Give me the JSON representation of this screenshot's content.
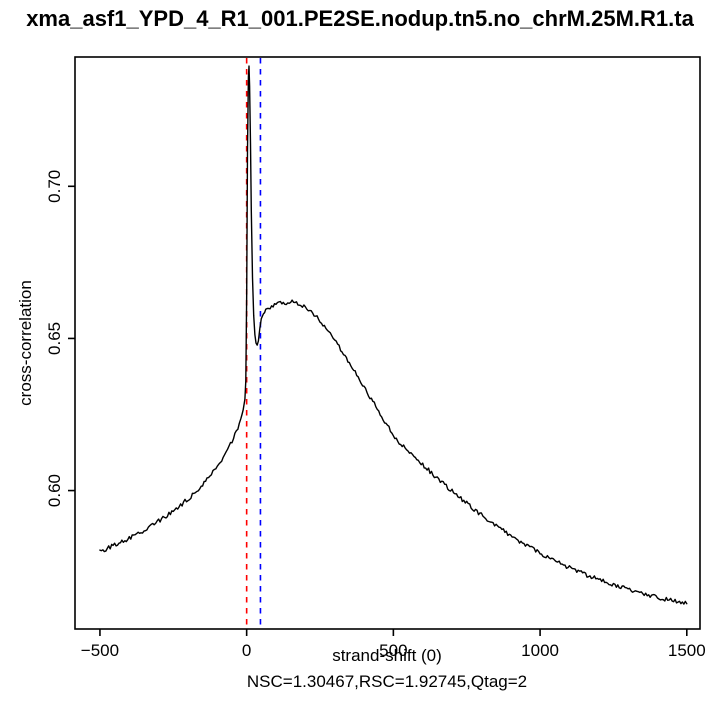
{
  "title": "xma_asf1_YPD_4_R1_001.PE2SE.nodup.tn5.no_chrM.25M.R1.ta",
  "chart_data": {
    "type": "line",
    "title": "xma_asf1_YPD_4_R1_001.PE2SE.nodup.tn5.no_chrM.25M.R1.ta",
    "xlabel": "strand-shift (0)",
    "ylabel": "cross-correlation",
    "subtitle": "NSC=1.30467,RSC=1.92745,Qtag=2",
    "xlim": [
      -585,
      1545
    ],
    "ylim": [
      0.5545,
      0.7425
    ],
    "grid": false,
    "x_ticks": [
      {
        "v": -500,
        "label": "−500"
      },
      {
        "v": 0,
        "label": "0"
      },
      {
        "v": 500,
        "label": "500"
      },
      {
        "v": 1000,
        "label": "1000"
      },
      {
        "v": 1500,
        "label": "1500"
      }
    ],
    "y_ticks": [
      {
        "v": 0.6,
        "label": "0.60"
      },
      {
        "v": 0.65,
        "label": "0.65"
      },
      {
        "v": 0.7,
        "label": "0.70"
      }
    ],
    "vlines": [
      {
        "x": 0,
        "color": "#FF0000",
        "style": "dashed",
        "name": "red-dashed-vline"
      },
      {
        "x": 47,
        "color": "#0000FF",
        "style": "dashed",
        "name": "blue-dashed-vline"
      }
    ],
    "series": [
      {
        "name": "cross-correlation",
        "color": "#000000",
        "x": [
          -500,
          -470,
          -440,
          -410,
          -380,
          -350,
          -320,
          -290,
          -260,
          -230,
          -200,
          -180,
          -160,
          -140,
          -120,
          -100,
          -85,
          -70,
          -55,
          -40,
          -30,
          -20,
          -12,
          -6,
          -3,
          0,
          3,
          6,
          8,
          10,
          13,
          16,
          20,
          24,
          28,
          32,
          36,
          40,
          45,
          50,
          57,
          65,
          75,
          90,
          110,
          130,
          150,
          170,
          190,
          210,
          240,
          270,
          300,
          330,
          360,
          390,
          420,
          450,
          480,
          510,
          540,
          570,
          600,
          650,
          700,
          750,
          800,
          850,
          900,
          950,
          1000,
          1050,
          1100,
          1150,
          1200,
          1250,
          1300,
          1350,
          1400,
          1450,
          1500
        ],
        "y": [
          0.58,
          0.5812,
          0.5825,
          0.5839,
          0.5854,
          0.587,
          0.5887,
          0.5906,
          0.5926,
          0.5948,
          0.5972,
          0.599,
          0.6009,
          0.603,
          0.6053,
          0.6079,
          0.61,
          0.6124,
          0.6151,
          0.6183,
          0.6207,
          0.6236,
          0.6264,
          0.63,
          0.636,
          0.665,
          0.712,
          0.736,
          0.7395,
          0.733,
          0.714,
          0.692,
          0.67,
          0.6575,
          0.6512,
          0.6485,
          0.6478,
          0.6492,
          0.6535,
          0.6565,
          0.6583,
          0.6593,
          0.6601,
          0.6608,
          0.6614,
          0.6618,
          0.662,
          0.6617,
          0.6609,
          0.6596,
          0.6568,
          0.6534,
          0.6494,
          0.645,
          0.6404,
          0.6356,
          0.6308,
          0.626,
          0.6213,
          0.6167,
          0.6138,
          0.611,
          0.6085,
          0.604,
          0.5998,
          0.5958,
          0.592,
          0.5885,
          0.5852,
          0.5822,
          0.5795,
          0.577,
          0.5747,
          0.5726,
          0.5707,
          0.569,
          0.5675,
          0.5661,
          0.5649,
          0.5638,
          0.5628
        ]
      }
    ]
  }
}
